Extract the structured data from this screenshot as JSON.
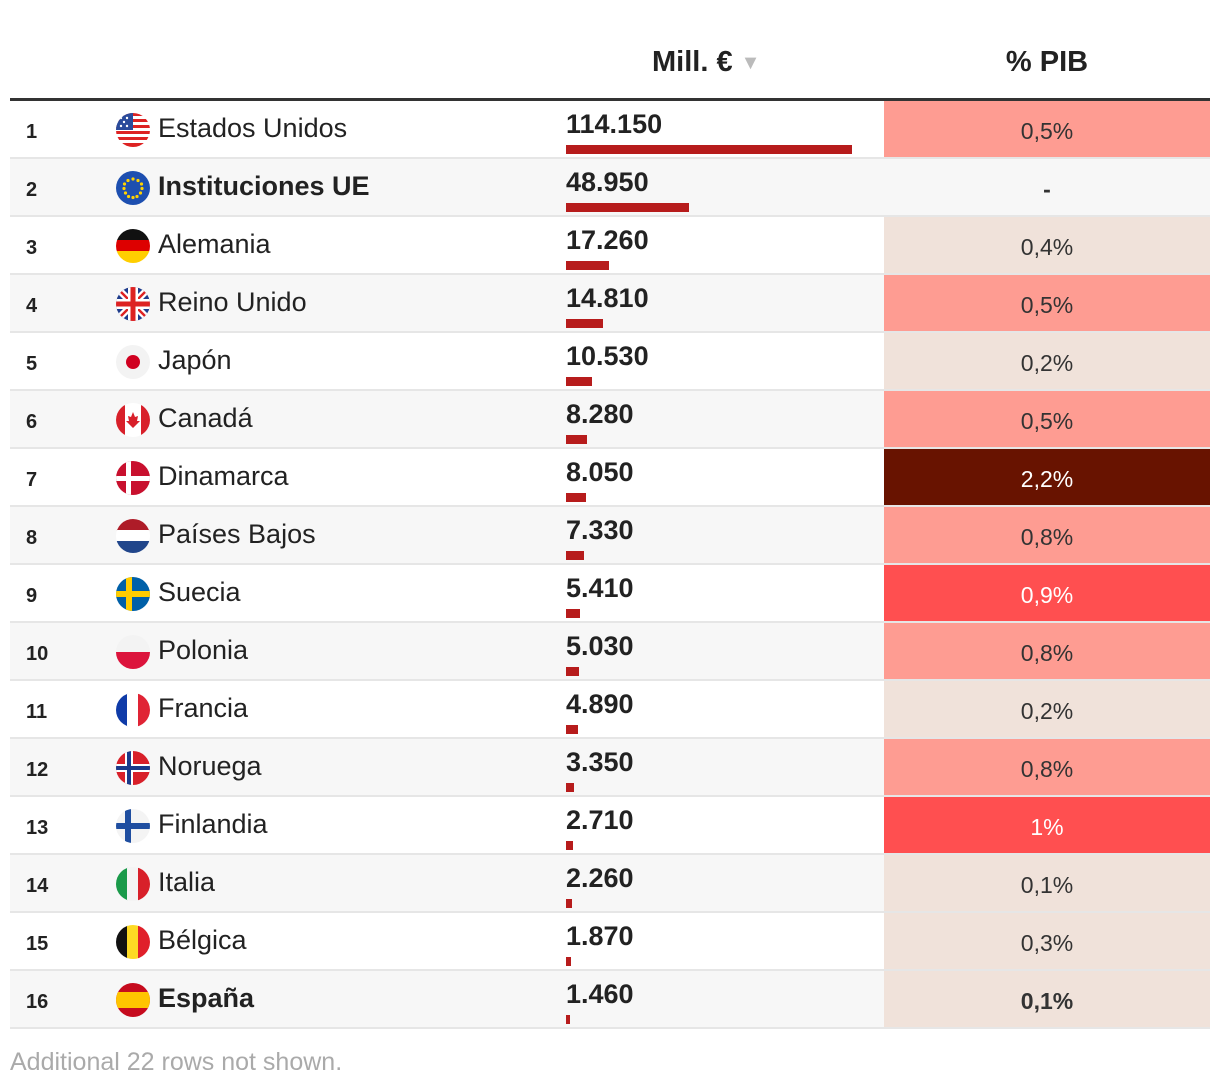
{
  "header": {
    "value_label": "Mill. €",
    "sort_glyph": "▼",
    "gdp_label": "% PIB"
  },
  "footer": {
    "note": "Additional 22 rows not shown."
  },
  "colors": {
    "bar": "#b71c1c",
    "gdp_scale": [
      "#f0e2da",
      "#fe9c92",
      "#ff4f50",
      "#681300"
    ]
  },
  "chart_data": {
    "type": "table",
    "columns": [
      "",
      "",
      "Mill. €",
      "% PIB"
    ],
    "max_value": 114150,
    "rows": [
      {
        "rank": "1",
        "country": "Estados Unidos",
        "flag": "us-flag-icon",
        "value": 114150,
        "value_label": "114.150",
        "gdp": 0.5,
        "gdp_label": "0,5%",
        "bold": false
      },
      {
        "rank": "2",
        "country": "Instituciones UE",
        "flag": "eu-flag-icon",
        "value": 48950,
        "value_label": "48.950",
        "gdp": null,
        "gdp_label": "-",
        "bold": true
      },
      {
        "rank": "3",
        "country": "Alemania",
        "flag": "de-flag-icon",
        "value": 17260,
        "value_label": "17.260",
        "gdp": 0.4,
        "gdp_label": "0,4%",
        "bold": false
      },
      {
        "rank": "4",
        "country": "Reino Unido",
        "flag": "gb-flag-icon",
        "value": 14810,
        "value_label": "14.810",
        "gdp": 0.5,
        "gdp_label": "0,5%",
        "bold": false
      },
      {
        "rank": "5",
        "country": "Japón",
        "flag": "jp-flag-icon",
        "value": 10530,
        "value_label": "10.530",
        "gdp": 0.2,
        "gdp_label": "0,2%",
        "bold": false
      },
      {
        "rank": "6",
        "country": "Canadá",
        "flag": "ca-flag-icon",
        "value": 8280,
        "value_label": "8.280",
        "gdp": 0.5,
        "gdp_label": "0,5%",
        "bold": false
      },
      {
        "rank": "7",
        "country": "Dinamarca",
        "flag": "dk-flag-icon",
        "value": 8050,
        "value_label": "8.050",
        "gdp": 2.2,
        "gdp_label": "2,2%",
        "bold": false
      },
      {
        "rank": "8",
        "country": "Países Bajos",
        "flag": "nl-flag-icon",
        "value": 7330,
        "value_label": "7.330",
        "gdp": 0.8,
        "gdp_label": "0,8%",
        "bold": false
      },
      {
        "rank": "9",
        "country": "Suecia",
        "flag": "se-flag-icon",
        "value": 5410,
        "value_label": "5.410",
        "gdp": 0.9,
        "gdp_label": "0,9%",
        "bold": false
      },
      {
        "rank": "10",
        "country": "Polonia",
        "flag": "pl-flag-icon",
        "value": 5030,
        "value_label": "5.030",
        "gdp": 0.8,
        "gdp_label": "0,8%",
        "bold": false
      },
      {
        "rank": "11",
        "country": "Francia",
        "flag": "fr-flag-icon",
        "value": 4890,
        "value_label": "4.890",
        "gdp": 0.2,
        "gdp_label": "0,2%",
        "bold": false
      },
      {
        "rank": "12",
        "country": "Noruega",
        "flag": "no-flag-icon",
        "value": 3350,
        "value_label": "3.350",
        "gdp": 0.8,
        "gdp_label": "0,8%",
        "bold": false
      },
      {
        "rank": "13",
        "country": "Finlandia",
        "flag": "fi-flag-icon",
        "value": 2710,
        "value_label": "2.710",
        "gdp": 1.0,
        "gdp_label": "1%",
        "bold": false
      },
      {
        "rank": "14",
        "country": "Italia",
        "flag": "it-flag-icon",
        "value": 2260,
        "value_label": "2.260",
        "gdp": 0.1,
        "gdp_label": "0,1%",
        "bold": false
      },
      {
        "rank": "15",
        "country": "Bélgica",
        "flag": "be-flag-icon",
        "value": 1870,
        "value_label": "1.870",
        "gdp": 0.3,
        "gdp_label": "0,3%",
        "bold": false
      },
      {
        "rank": "16",
        "country": "España",
        "flag": "es-flag-icon",
        "value": 1460,
        "value_label": "1.460",
        "gdp": 0.1,
        "gdp_label": "0,1%",
        "bold": true
      }
    ]
  }
}
